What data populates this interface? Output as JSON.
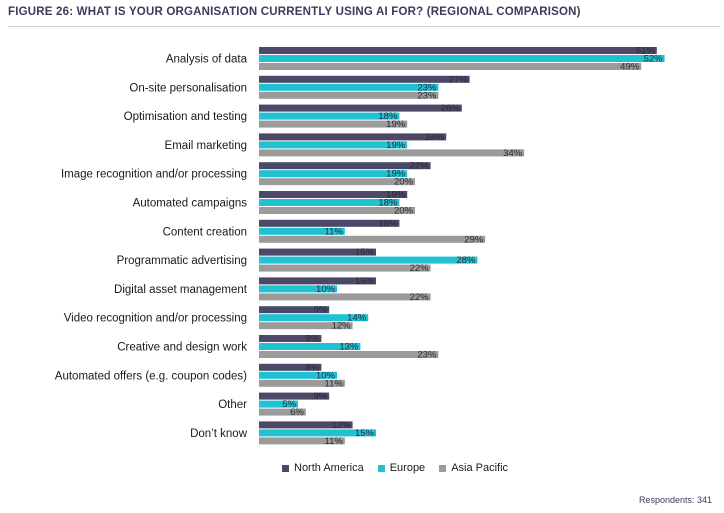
{
  "title": "FIGURE 26: WHAT IS YOUR ORGANISATION CURRENTLY USING AI FOR? (REGIONAL COMPARISON)",
  "footnote": "Respondents: 341",
  "colors": {
    "north_america": "#4b4868",
    "europe": "#1fc1d3",
    "asia_pacific": "#9b9b9b"
  },
  "chart_data": {
    "type": "bar",
    "orientation": "horizontal",
    "title": "FIGURE 26: WHAT IS YOUR ORGANISATION CURRENTLY USING AI FOR? (REGIONAL COMPARISON)",
    "categories": [
      "Analysis of data",
      "On-site personalisation",
      "Optimisation and testing",
      "Email marketing",
      "Image recognition and/or processing",
      "Automated campaigns",
      "Content creation",
      "Programmatic advertising",
      "Digital asset management",
      "Video recognition and/or processing",
      "Creative and design work",
      "Automated offers (e.g. coupon codes)",
      "Other",
      "Don’t know"
    ],
    "series": [
      {
        "name": "North America",
        "values": [
          51,
          27,
          26,
          24,
          22,
          19,
          18,
          15,
          15,
          9,
          8,
          8,
          9,
          12
        ]
      },
      {
        "name": "Europe",
        "values": [
          52,
          23,
          18,
          19,
          19,
          18,
          11,
          28,
          10,
          14,
          13,
          10,
          5,
          15
        ]
      },
      {
        "name": "Asia Pacific",
        "values": [
          49,
          23,
          19,
          34,
          20,
          20,
          29,
          22,
          22,
          12,
          23,
          11,
          6,
          11
        ]
      }
    ],
    "value_suffix": "%",
    "legend_position": "bottom",
    "grid": false
  }
}
